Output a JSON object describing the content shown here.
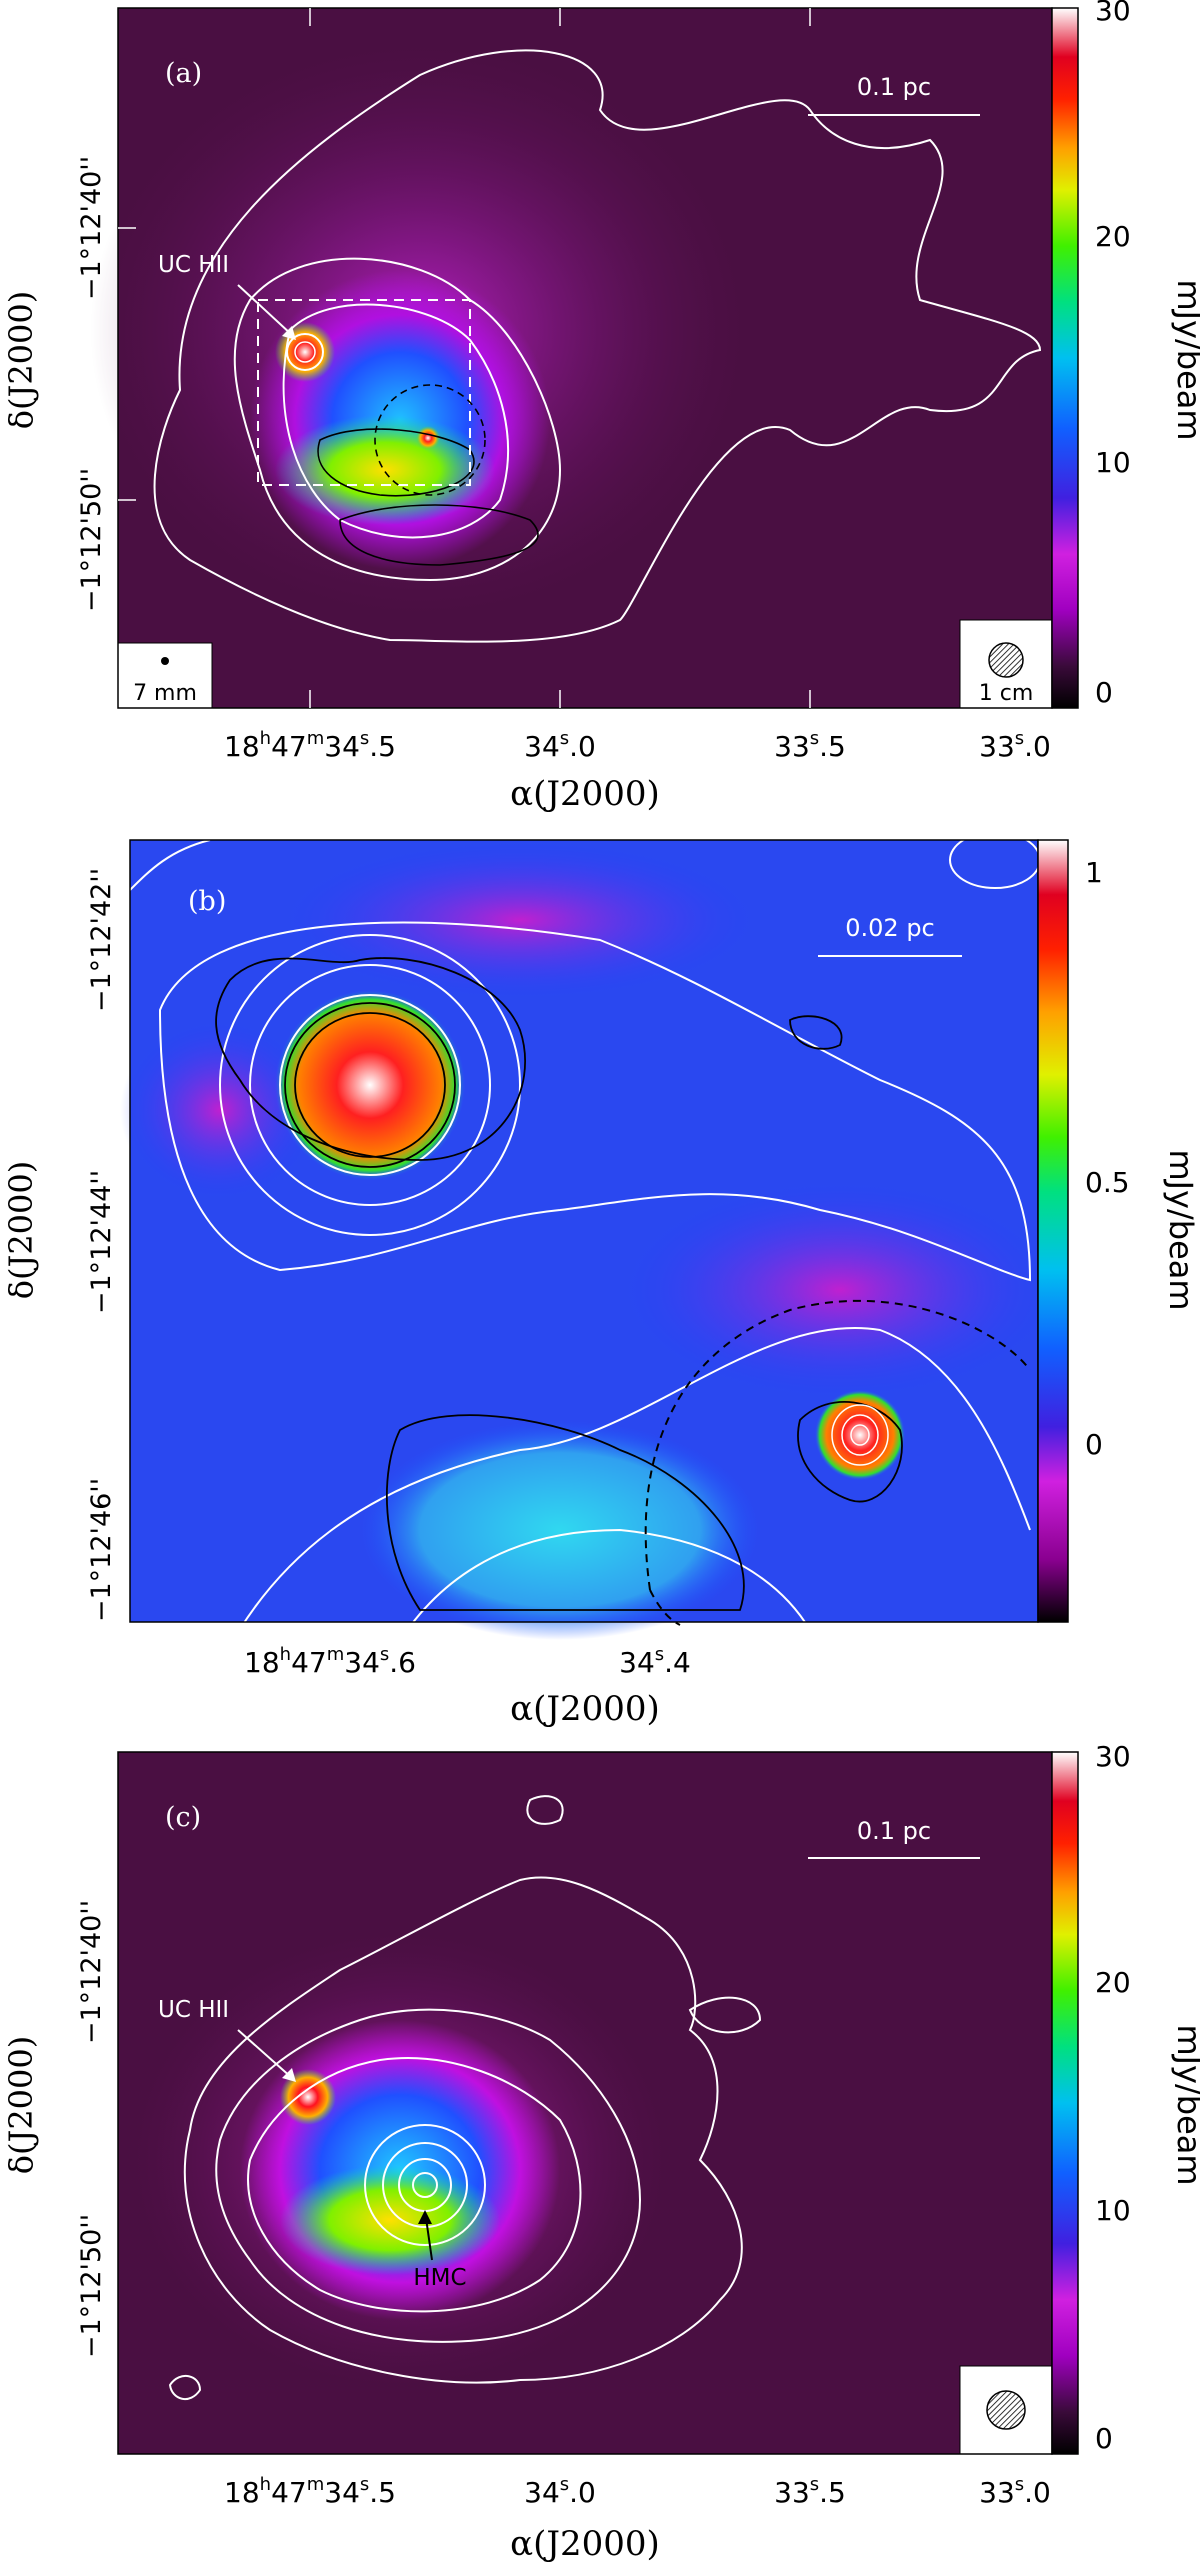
{
  "panels": [
    {
      "letter": "(a)",
      "scale_bar": "0.1 pc",
      "label_uchii": "UC HII",
      "label_hmc": "",
      "beam_left": "7 mm",
      "beam_right": "1 cm",
      "ra_major": "18",
      "ra_h": "h",
      "ra_mid": "47",
      "ra_m": "m",
      "ra_tail": "34",
      "ra_s": "s",
      "ra_frac": ".5",
      "x_ticks": [
        {
          "main": "34",
          "frac": ".0"
        },
        {
          "main": "33",
          "frac": ".5"
        },
        {
          "main": "33",
          "frac": ".0"
        }
      ],
      "y_ticks": [
        "−1°12'40''",
        "−1°12'50''"
      ],
      "cbar_ticks": [
        "0",
        "10",
        "20",
        "30"
      ],
      "cbar_label": "mJy/beam",
      "xlabel": "α(J2000)",
      "ylabel": "δ(J2000)"
    },
    {
      "letter": "(b)",
      "scale_bar": "0.02 pc",
      "ra_major": "18",
      "ra_h": "h",
      "ra_mid": "47",
      "ra_m": "m",
      "ra_tail": "34",
      "ra_s": "s",
      "ra_frac": ".6",
      "x_ticks": [
        {
          "main": "34",
          "frac": ".4"
        }
      ],
      "y_ticks": [
        "−1°12'42''",
        "−1°12'44''",
        "−1°12'46''"
      ],
      "cbar_ticks": [
        "0",
        "0.5",
        "1"
      ],
      "cbar_label": "mJy/beam",
      "xlabel": "α(J2000)",
      "ylabel": "δ(J2000)"
    },
    {
      "letter": "(c)",
      "scale_bar": "0.1 pc",
      "label_uchii": "UC HII",
      "label_hmc": "HMC",
      "ra_major": "18",
      "ra_h": "h",
      "ra_mid": "47",
      "ra_m": "m",
      "ra_tail": "34",
      "ra_s": "s",
      "ra_frac": ".5",
      "x_ticks": [
        {
          "main": "34",
          "frac": ".0"
        },
        {
          "main": "33",
          "frac": ".5"
        },
        {
          "main": "33",
          "frac": ".0"
        }
      ],
      "y_ticks": [
        "−1°12'40''",
        "−1°12'50''"
      ],
      "cbar_ticks": [
        "0",
        "10",
        "20",
        "30"
      ],
      "cbar_label": "mJy/beam",
      "xlabel": "α(J2000)",
      "ylabel": "δ(J2000)"
    }
  ],
  "colors": {
    "background_map": "#3b0a33",
    "contour_white": "#ffffff",
    "contour_black": "#000000"
  }
}
